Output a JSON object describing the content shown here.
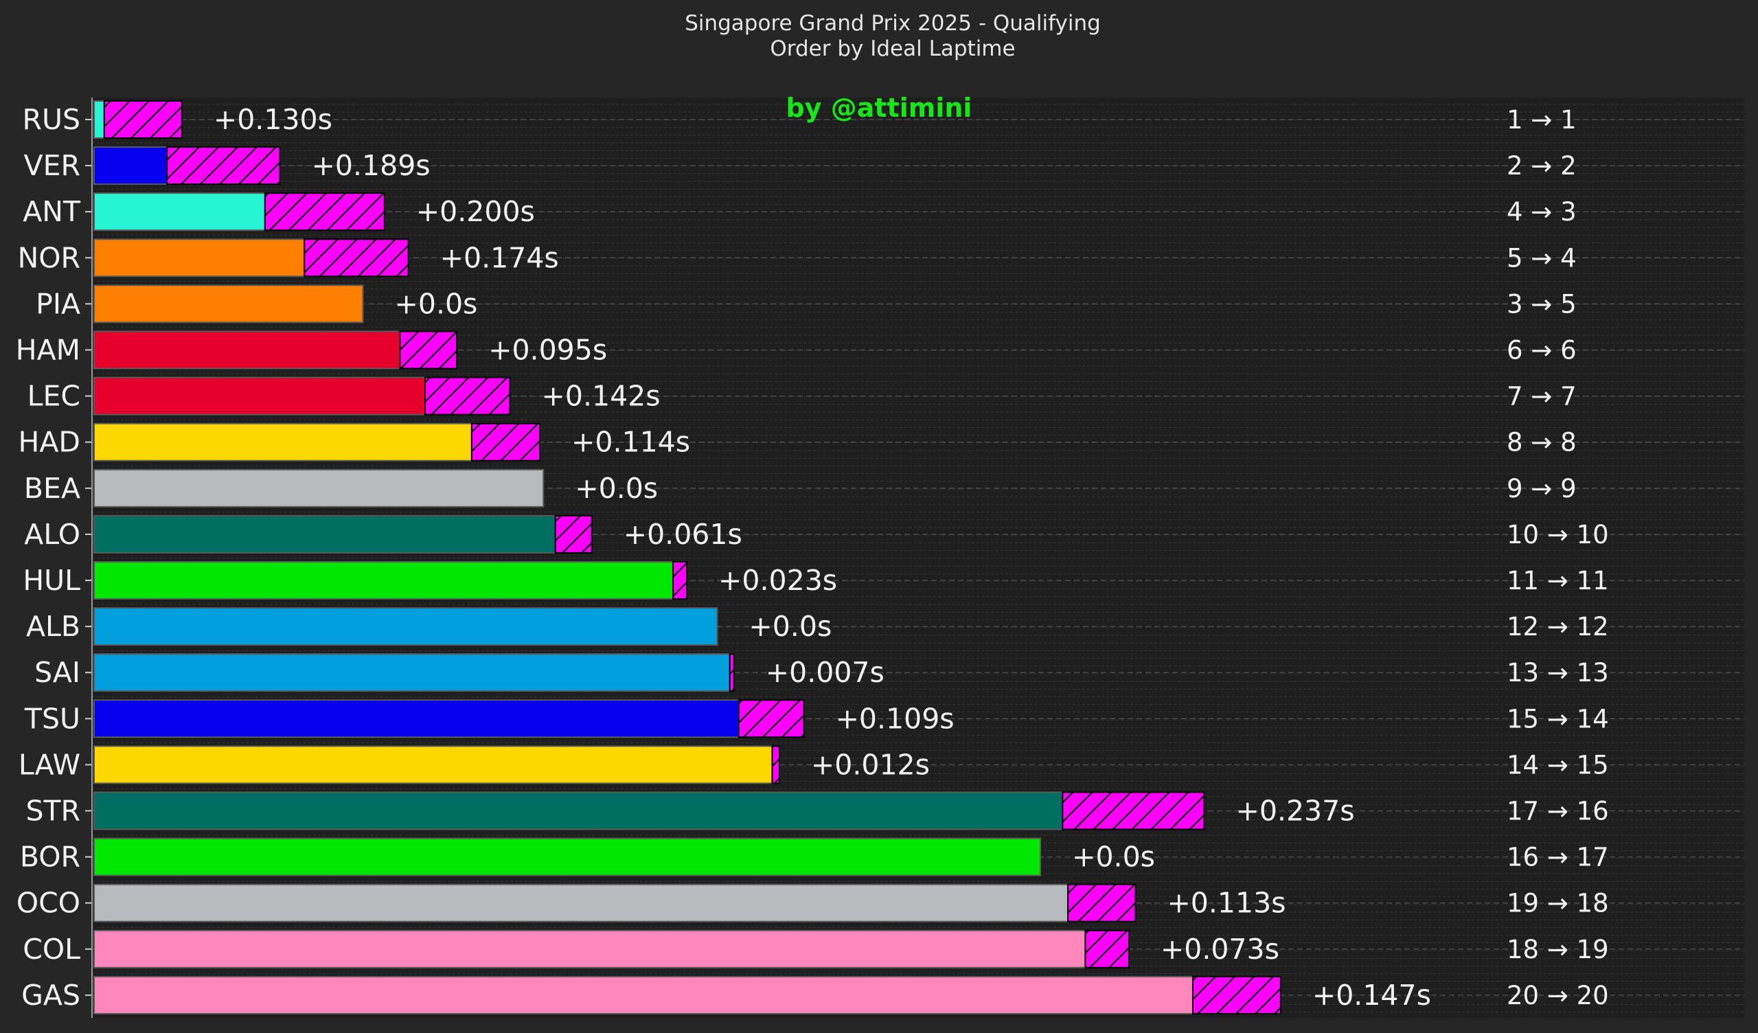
{
  "colors": {
    "background": "#262626",
    "plot_background": "#1f1f1f",
    "gain_fill": "#ff00ff",
    "text": "#f2f2f2",
    "watermark": "#19e619"
  },
  "chart_data": {
    "type": "bar",
    "orientation": "horizontal",
    "stacked": true,
    "title": "Singapore Grand Prix 2025 - Qualifying",
    "subtitle": "Order by Ideal Laptime",
    "watermark": "by @attimini",
    "xlabel": "",
    "ylabel": "",
    "grid": "horizontal dashed",
    "categories": [
      "RUS",
      "VER",
      "ANT",
      "NOR",
      "PIA",
      "HAM",
      "LEC",
      "HAD",
      "BEA",
      "ALO",
      "HUL",
      "ALB",
      "SAI",
      "TSU",
      "LAW",
      "STR",
      "BOR",
      "OCO",
      "COL",
      "GAS"
    ],
    "values": [
      0.017,
      0.122,
      0.286,
      0.352,
      0.45,
      0.512,
      0.554,
      0.632,
      0.752,
      0.772,
      0.969,
      1.043,
      1.064,
      1.079,
      1.135,
      1.621,
      1.584,
      1.63,
      1.659,
      1.839
    ],
    "series": [
      {
        "name": "",
        "values": [
          0.017,
          0.122,
          0.286,
          0.352,
          0.45,
          0.512,
          0.554,
          0.632,
          0.752,
          0.772,
          0.969,
          1.043,
          1.064,
          1.079,
          1.135,
          1.621,
          1.584,
          1.63,
          1.659,
          1.839
        ]
      },
      {
        "name": "",
        "values": [
          0.13,
          0.189,
          0.2,
          0.174,
          0.0,
          0.095,
          0.142,
          0.114,
          0.0,
          0.061,
          0.023,
          0.0,
          0.007,
          0.109,
          0.012,
          0.237,
          0.0,
          0.113,
          0.073,
          0.147
        ]
      }
    ],
    "xlim": [
      0,
      2.762
    ],
    "bar_colors": [
      "#27f4d2",
      "#0600ef",
      "#27f4d2",
      "#ff8000",
      "#ff8000",
      "#e8002d",
      "#e8002d",
      "#fcd700",
      "#b6babd",
      "#006f62",
      "#00e701",
      "#00a0de",
      "#00a0de",
      "#0600ef",
      "#fcd700",
      "#006f62",
      "#00e701",
      "#b6babd",
      "#ff87bc",
      "#ff87bc"
    ],
    "delta_labels": [
      "+0.130s",
      "+0.189s",
      "+0.200s",
      "+0.174s",
      "+0.0s",
      "+0.095s",
      "+0.142s",
      "+0.114s",
      "+0.0s",
      "+0.061s",
      "+0.023s",
      "+0.0s",
      "+0.007s",
      "+0.109s",
      "+0.012s",
      "+0.237s",
      "+0.0s",
      "+0.113s",
      "+0.073s",
      "+0.147s"
    ],
    "position_labels": [
      "1 → 1",
      "2 → 2",
      "4 → 3",
      "5 → 4",
      "3 → 5",
      "6 → 6",
      "7 → 7",
      "8 → 8",
      "9 → 9",
      "10 → 10",
      "11 → 11",
      "12 → 12",
      "13 → 13",
      "15 → 14",
      "14 → 15",
      "17 → 16",
      "16 → 17",
      "19 → 18",
      "18 → 19",
      "20 → 20"
    ]
  }
}
